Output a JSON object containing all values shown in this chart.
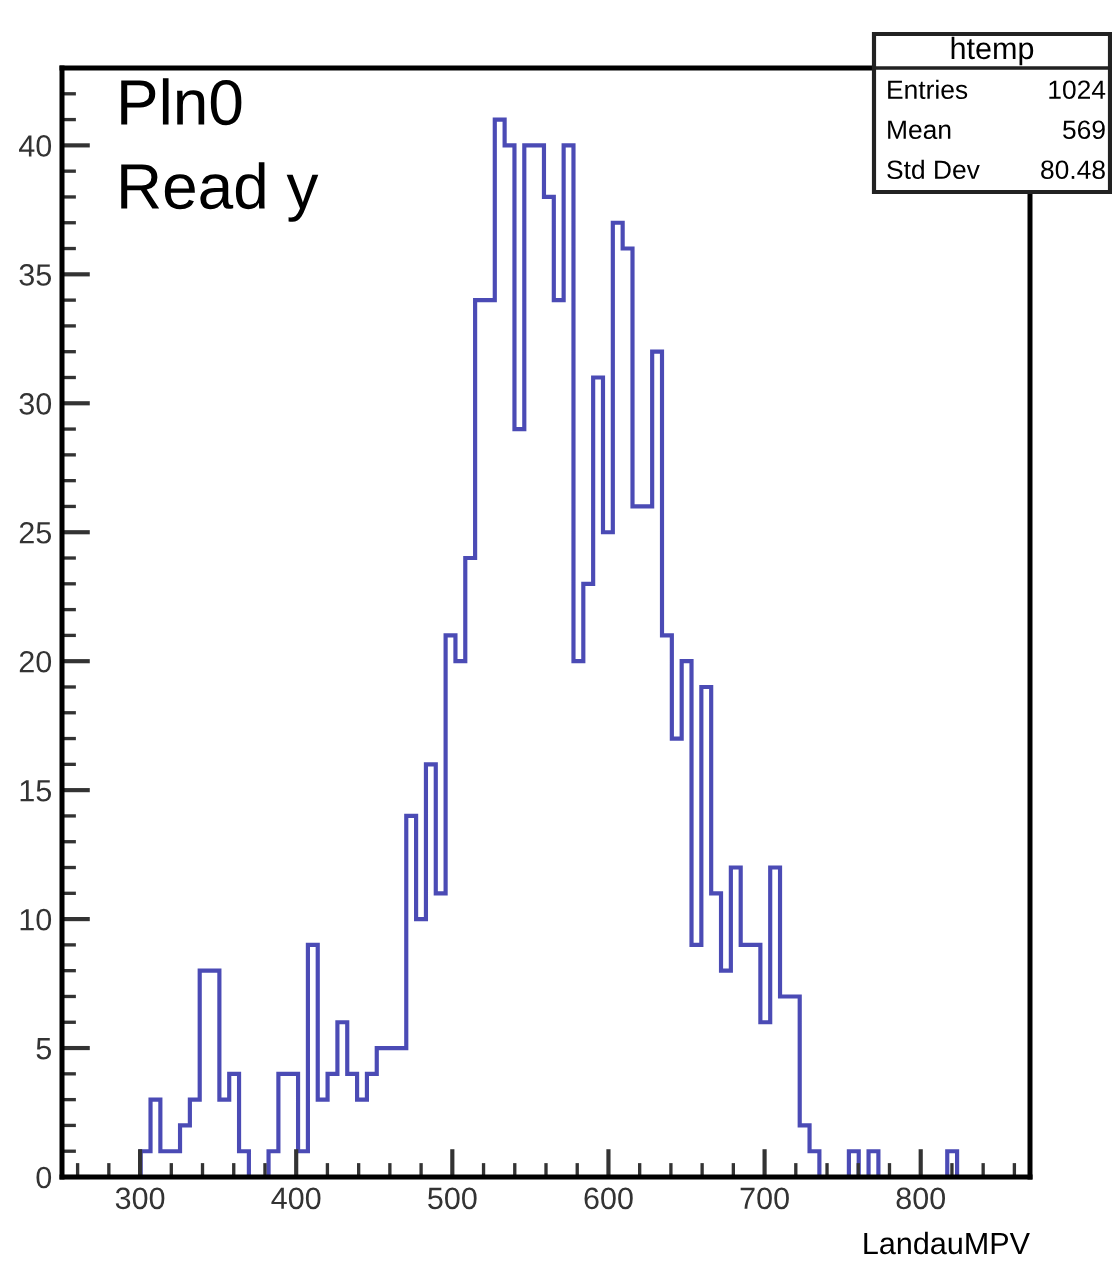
{
  "chart_data": {
    "type": "histogram",
    "title": "htemp",
    "xlabel": "LandauMPV",
    "bins": [
      250.0,
      256.3,
      262.6,
      268.9,
      275.2,
      281.5,
      287.8,
      294.1,
      300.4,
      306.7,
      313.0,
      319.3,
      325.6,
      331.9,
      338.2,
      344.5,
      350.8,
      357.1,
      363.4,
      369.7,
      376.0,
      382.3,
      388.6,
      394.9,
      401.2,
      407.5,
      413.8,
      420.1,
      426.4,
      432.7,
      439.0,
      445.3,
      451.6,
      457.9,
      464.2,
      470.5,
      476.8,
      483.1,
      489.4,
      495.7,
      502.0,
      508.3,
      514.6,
      520.9,
      527.2,
      533.5,
      539.8,
      546.1,
      552.4,
      558.7,
      565.0,
      571.3,
      577.6,
      583.9,
      590.2,
      596.5,
      602.8,
      609.1,
      615.4,
      621.7,
      628.0,
      634.3,
      640.6,
      646.9,
      653.2,
      659.5,
      665.8,
      672.1,
      678.4,
      684.7,
      691.0,
      697.3,
      703.6,
      709.9,
      716.2,
      722.5,
      728.8,
      735.1,
      741.4,
      747.7,
      754.0,
      760.3,
      766.6,
      772.9,
      779.2,
      785.5,
      791.8,
      798.1,
      804.4,
      810.7,
      817.0,
      823.3,
      829.6,
      835.9,
      842.2,
      848.5,
      854.8,
      861.1,
      867.4
    ],
    "values": [
      0,
      0,
      0,
      0,
      0,
      0,
      0,
      0,
      1,
      3,
      1,
      1,
      2,
      3,
      8,
      8,
      3,
      4,
      1,
      0,
      0,
      1,
      4,
      4,
      1,
      9,
      3,
      4,
      6,
      4,
      3,
      4,
      5,
      5,
      5,
      14,
      10,
      16,
      11,
      21,
      20,
      24,
      34,
      34,
      41,
      40,
      29,
      40,
      40,
      38,
      34,
      40,
      20,
      23,
      31,
      25,
      37,
      36,
      26,
      26,
      32,
      21,
      17,
      20,
      9,
      19,
      11,
      8,
      12,
      9,
      9,
      6,
      12,
      7,
      7,
      2,
      1,
      0,
      0,
      0,
      1,
      0,
      1,
      0,
      0,
      0,
      0,
      0,
      0,
      0,
      1,
      0,
      0,
      0,
      0,
      0,
      0,
      0
    ],
    "color": "#4b4bb5",
    "xlim": [
      250,
      870
    ],
    "xticks": [
      300,
      400,
      500,
      600,
      700,
      800
    ],
    "ylim": [
      0,
      43
    ],
    "yticks": [
      0,
      5,
      10,
      15,
      20,
      25,
      30,
      35,
      40
    ],
    "grid": false,
    "annotations": [
      "Pln0",
      "Read y",
      "Entries",
      "1024",
      "Mean",
      "569",
      "Std Dev",
      "80.48"
    ]
  }
}
